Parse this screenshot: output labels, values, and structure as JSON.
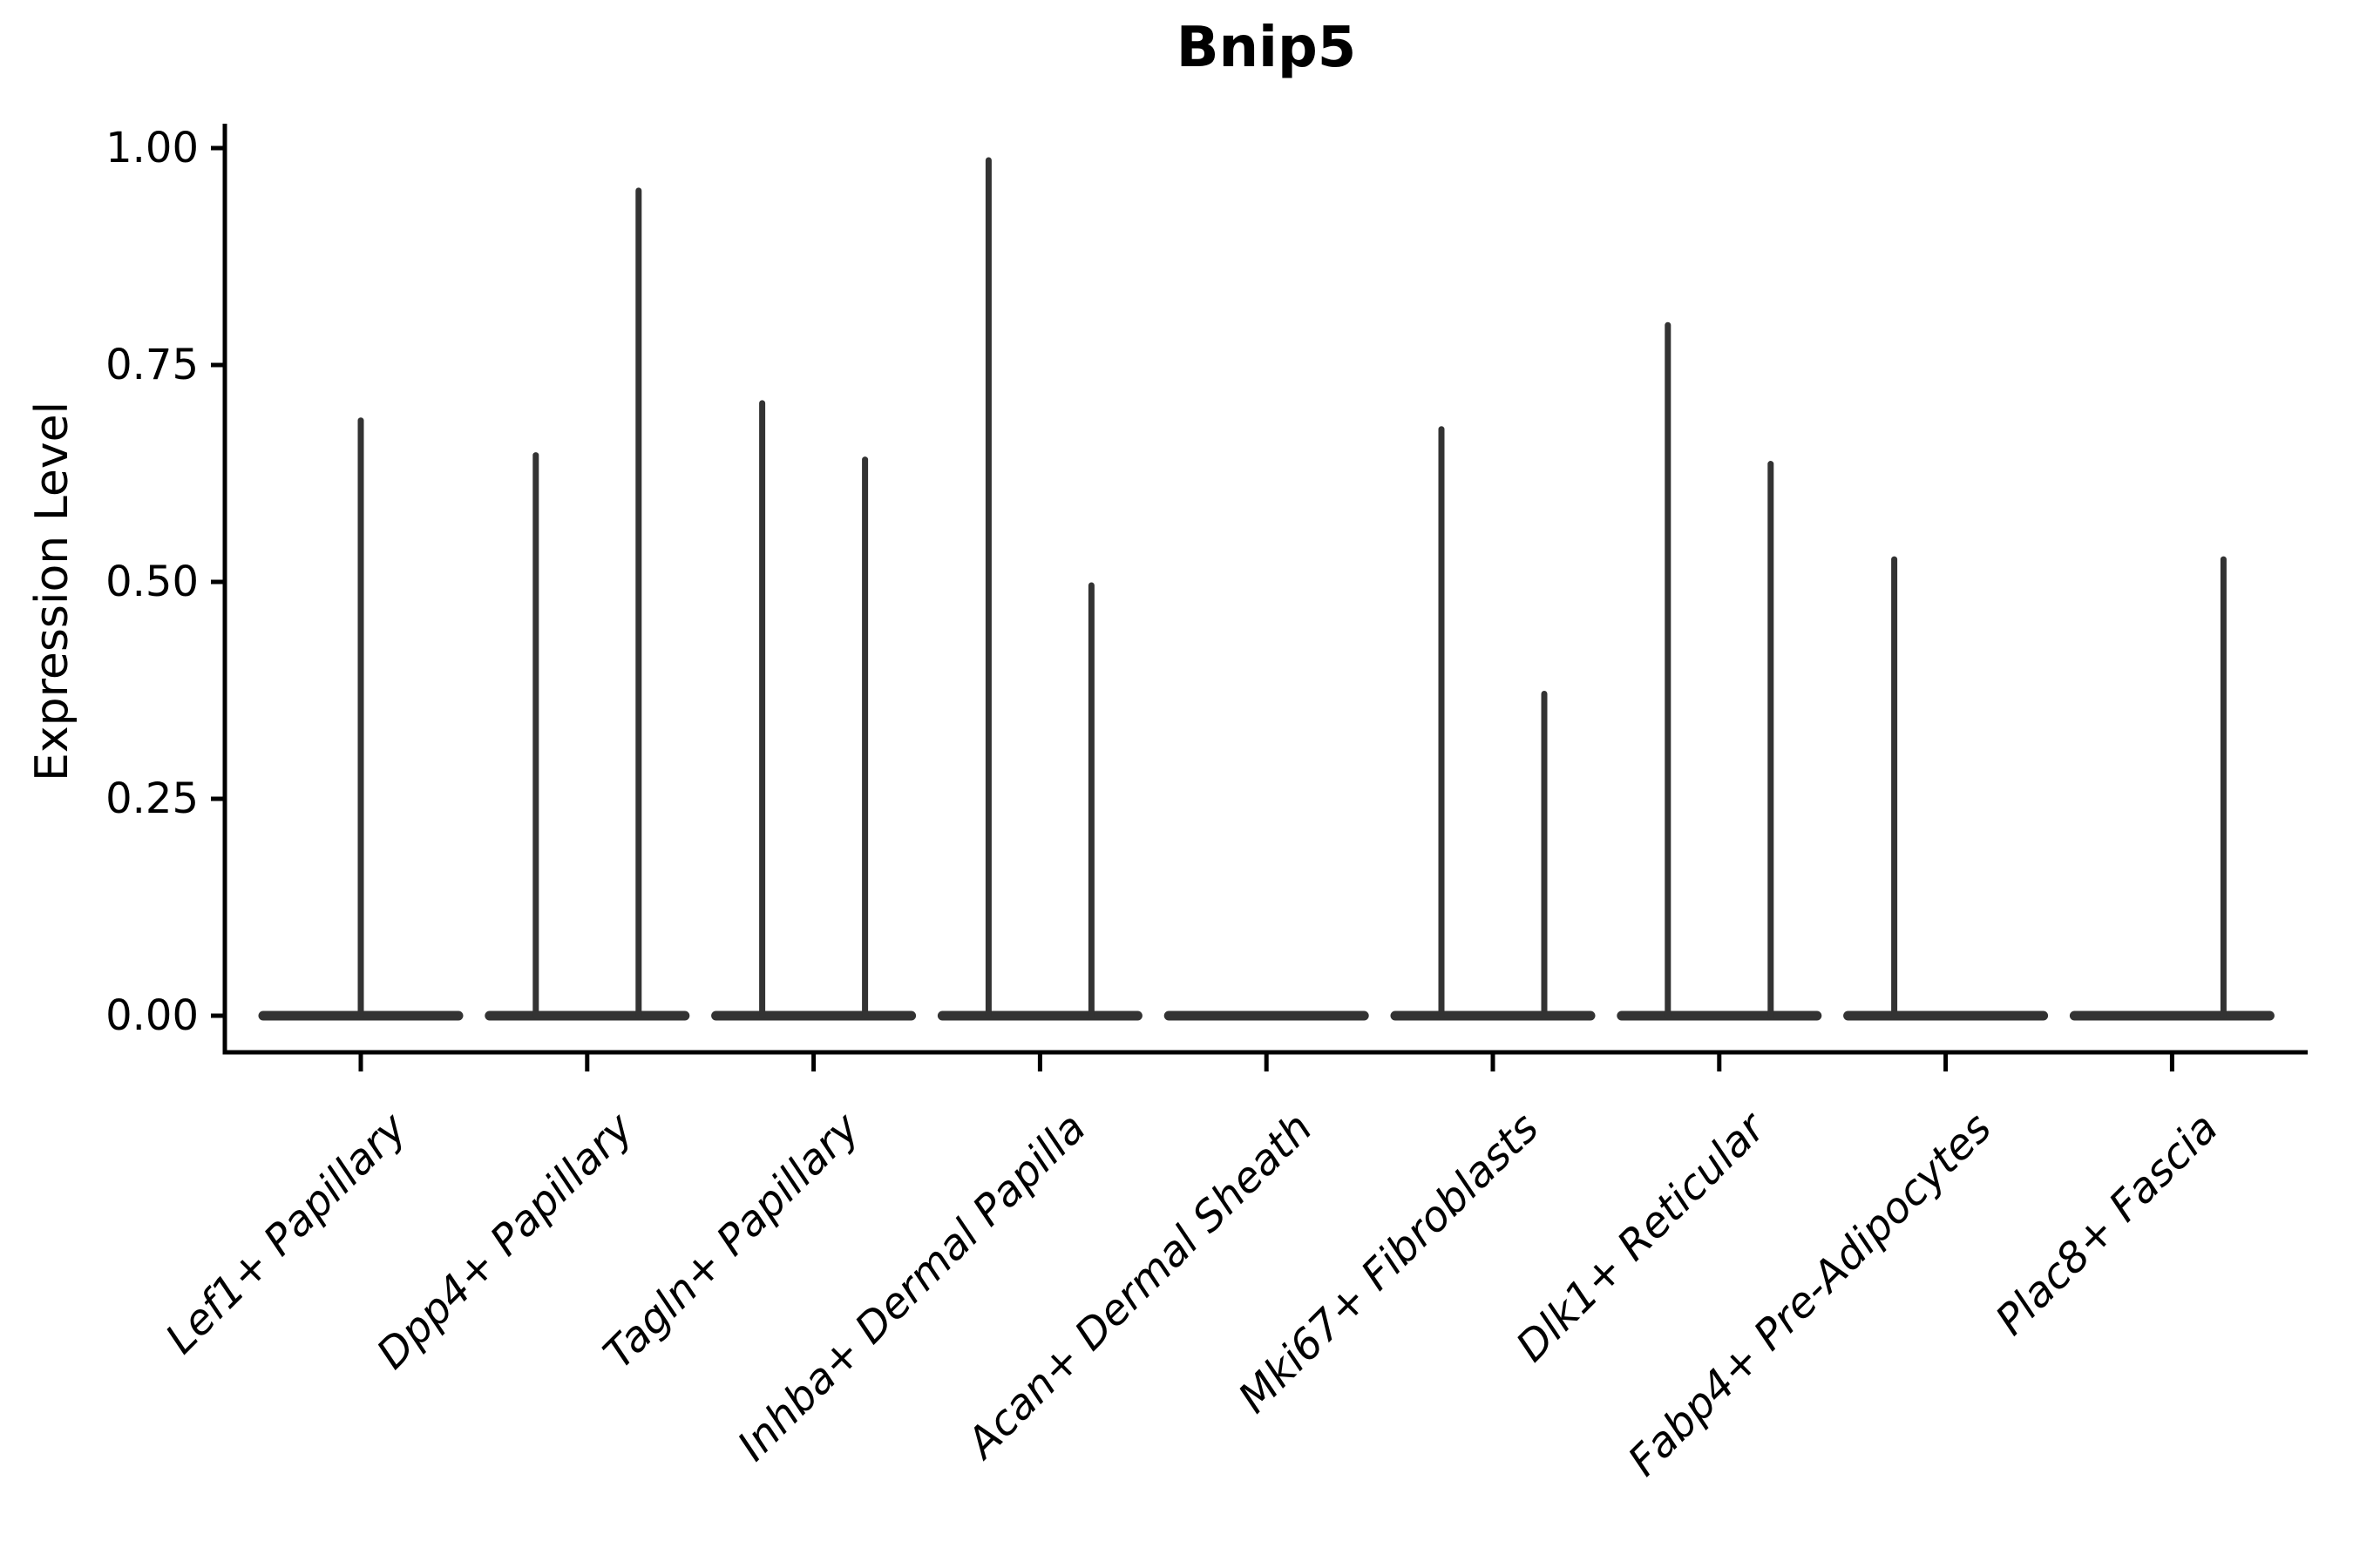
{
  "figure": {
    "title": "Bnip5",
    "y_axis_label": "Expression Level"
  },
  "chart_data": {
    "type": "violin",
    "title": "Bnip5",
    "xlabel": "",
    "ylabel": "Expression Level",
    "ylim": [
      0,
      1.0
    ],
    "grid": false,
    "legend": "none",
    "yticks": [
      {
        "value": 0.0,
        "label": "0.00"
      },
      {
        "value": 0.25,
        "label": "0.25"
      },
      {
        "value": 0.5,
        "label": "0.50"
      },
      {
        "value": 0.75,
        "label": "0.75"
      },
      {
        "value": 1.0,
        "label": "1.00"
      }
    ],
    "categories": [
      "Lef1+ Papillary",
      "Dpp4+ Papillary",
      "Tagln+ Papillary",
      "Inhba+ Dermal Papilla",
      "Acan+ Dermal Sheath",
      "Mki67+ Fibroblasts",
      "Dlk1+ Reticular",
      "Fabp4+ Pre-Adipocytes",
      "Plac8+ Fascia"
    ],
    "violins": [
      {
        "category": "Lef1+ Papillary",
        "baseline_value": 0,
        "spikes": [
          {
            "position": "center",
            "max": 0.69
          }
        ]
      },
      {
        "category": "Dpp4+ Papillary",
        "baseline_value": 0,
        "spikes": [
          {
            "position": "left",
            "max": 0.65
          },
          {
            "position": "right",
            "max": 0.955
          }
        ]
      },
      {
        "category": "Tagln+ Papillary",
        "baseline_value": 0,
        "spikes": [
          {
            "position": "left",
            "max": 0.71
          },
          {
            "position": "right",
            "max": 0.645
          }
        ]
      },
      {
        "category": "Inhba+ Dermal Papilla",
        "baseline_value": 0,
        "spikes": [
          {
            "position": "left",
            "max": 0.99
          },
          {
            "position": "right",
            "max": 0.5
          }
        ]
      },
      {
        "category": "Acan+ Dermal Sheath",
        "baseline_value": 0,
        "spikes": []
      },
      {
        "category": "Mki67+ Fibroblasts",
        "baseline_value": 0,
        "spikes": [
          {
            "position": "left",
            "max": 0.68
          },
          {
            "position": "right",
            "max": 0.375
          }
        ]
      },
      {
        "category": "Dlk1+ Reticular",
        "baseline_value": 0,
        "spikes": [
          {
            "position": "left",
            "max": 0.8
          },
          {
            "position": "right",
            "max": 0.64
          }
        ]
      },
      {
        "category": "Fabp4+ Pre-Adipocytes",
        "baseline_value": 0,
        "spikes": [
          {
            "position": "left",
            "max": 0.53
          }
        ]
      },
      {
        "category": "Plac8+ Fascia",
        "baseline_value": 0,
        "spikes": [
          {
            "position": "right",
            "max": 0.53
          }
        ]
      }
    ],
    "colors": {
      "violin_stroke": "#333333",
      "axis": "#000000",
      "text": "#000000",
      "background": "#ffffff"
    }
  }
}
